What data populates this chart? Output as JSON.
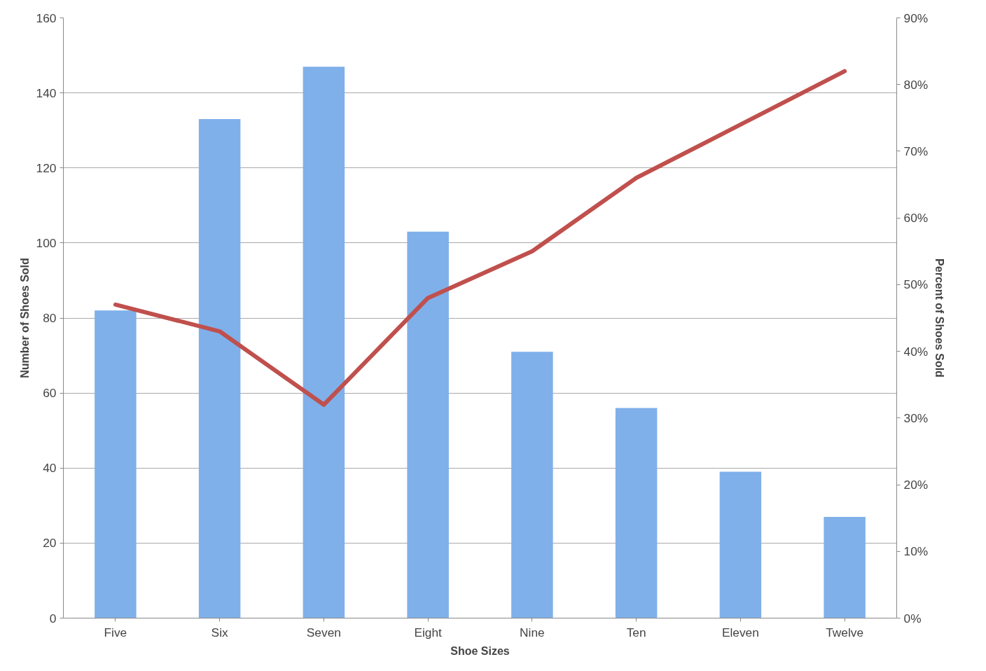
{
  "chart_data": {
    "type": "bar",
    "xlabel": "Shoe Sizes",
    "ylabel": "Number of Shoes Sold",
    "y2label": "Percent of Shoes Sold",
    "categories": [
      "Five",
      "Six",
      "Seven",
      "Eight",
      "Nine",
      "Ten",
      "Eleven",
      "Twelve"
    ],
    "series": [
      {
        "color": "#7fb0ea",
        "values": [
          82,
          133,
          147,
          103,
          71,
          56,
          39,
          27
        ]
      },
      {
        "type": "line",
        "axis": "y2",
        "color": "#c0504d",
        "values": [
          47,
          43,
          32,
          48,
          55,
          66,
          74,
          82
        ]
      }
    ],
    "ylim": [
      0,
      160
    ],
    "yticks": [
      0,
      20,
      40,
      60,
      80,
      100,
      120,
      140,
      160
    ],
    "y2lim": [
      0,
      90
    ],
    "y2ticks": [
      {
        "value": 0,
        "label": "0%"
      },
      {
        "value": 10,
        "label": "10%"
      },
      {
        "value": 20,
        "label": "20%"
      },
      {
        "value": 30,
        "label": "30%"
      },
      {
        "value": 40,
        "label": "40%"
      },
      {
        "value": 50,
        "label": "50%"
      },
      {
        "value": 60,
        "label": "60%"
      },
      {
        "value": 70,
        "label": "70%"
      },
      {
        "value": 80,
        "label": "80%"
      },
      {
        "value": 90,
        "label": "90%"
      }
    ],
    "grid": "y",
    "marker": "none",
    "line_style": "solid"
  }
}
